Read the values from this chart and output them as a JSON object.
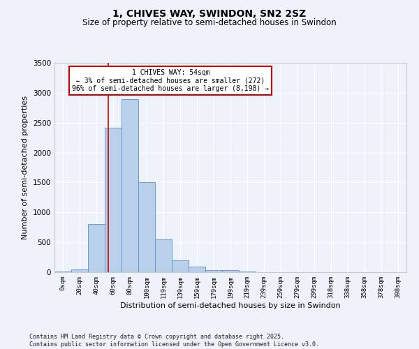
{
  "title": "1, CHIVES WAY, SWINDON, SN2 2SZ",
  "subtitle": "Size of property relative to semi-detached houses in Swindon",
  "xlabel": "Distribution of semi-detached houses by size in Swindon",
  "ylabel": "Number of semi-detached properties",
  "bar_color": "#b8d0ea",
  "bar_edge_color": "#5b8fc9",
  "background_color": "#edf2fb",
  "categories": [
    "0sqm",
    "20sqm",
    "40sqm",
    "60sqm",
    "80sqm",
    "100sqm",
    "119sqm",
    "139sqm",
    "159sqm",
    "179sqm",
    "199sqm",
    "219sqm",
    "239sqm",
    "259sqm",
    "279sqm",
    "299sqm",
    "318sqm",
    "338sqm",
    "358sqm",
    "378sqm",
    "398sqm"
  ],
  "values": [
    10,
    50,
    800,
    2420,
    2890,
    1510,
    550,
    195,
    90,
    35,
    35,
    10,
    5,
    5,
    5,
    0,
    0,
    0,
    0,
    0,
    0
  ],
  "ylim": [
    0,
    3500
  ],
  "yticks": [
    0,
    500,
    1000,
    1500,
    2000,
    2500,
    3000,
    3500
  ],
  "annotation_title": "1 CHIVES WAY: 54sqm",
  "annotation_line1": "← 3% of semi-detached houses are smaller (272)",
  "annotation_line2": "96% of semi-detached houses are larger (8,198) →",
  "footer_line1": "Contains HM Land Registry data © Crown copyright and database right 2025.",
  "footer_line2": "Contains public sector information licensed under the Open Government Licence v3.0.",
  "red_line_color": "#cc0000",
  "annotation_box_facecolor": "#ffffff",
  "annotation_box_edgecolor": "#cc0000",
  "grid_color": "#ffffff",
  "spine_color": "#cccccc"
}
